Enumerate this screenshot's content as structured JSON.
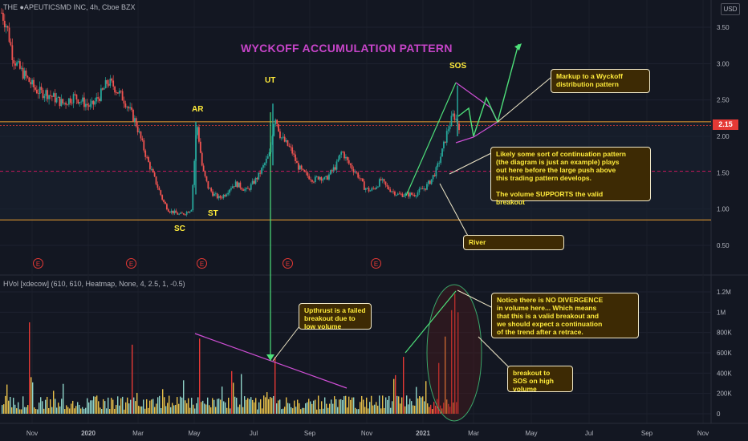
{
  "header": {
    "symbol_line": "THE ●APEUTICSMD INC, 4h, Cboe BZX",
    "currency": "USD",
    "last_price": "2.15",
    "indicator_line": "HVol [xdecow] (610, 610, Heatmap, None, 4, 2.5, 1, -0.5)"
  },
  "title": "WYCKOFF ACCUMULATION PATTERN",
  "labels": {
    "sc": "SC",
    "ar": "AR",
    "st": "ST",
    "ut": "UT",
    "sos": "SOS"
  },
  "earnings_badge": "E",
  "notes": {
    "markup": "Markup to a Wyckoff\ndistribution pattern",
    "continuation": "Likely some sort of continuation pattern\n(the diagram is just an example) plays\nout here before the large push above\nthis trading pattern develops.\n\nThe volume SUPPORTS the valid\nbreakout",
    "river": "River",
    "upthrust": "Upthrust is a failed\nbreakout due to\nlow volume",
    "divergence": "Notice there is NO DIVERGENCE\nin volume here... Which means\nthat this is a valid breakout and\nwe should expect a continuation\nof the trend after a retrace.",
    "sos_volume": "breakout to\nSOS on high\nvolume"
  },
  "colors": {
    "background": "#131722",
    "candle_up": "#26a69a",
    "candle_down": "#ef5350",
    "range_line": "#f0a030",
    "mid_line": "#c2185b",
    "arrow": "#4ee07a",
    "diagonal": "#d04fd6",
    "note_bg": "#3d2a04",
    "note_text": "#ffeb3b"
  },
  "chart_data": [
    {
      "type": "line",
      "description_label": "price",
      "x_ticks": [
        "Nov",
        "2020",
        "Mar",
        "May",
        "Jul",
        "Sep",
        "Nov",
        "2021",
        "Mar",
        "May",
        "Jul",
        "Sep",
        "Nov"
      ],
      "y_ticks": [
        0.5,
        1.0,
        1.5,
        2.0,
        2.5,
        3.0,
        3.5
      ],
      "ylim": [
        0.3,
        3.85
      ],
      "last_price": 2.15,
      "range_high": 2.2,
      "range_mid": 1.52,
      "range_low": 0.85,
      "series": [
        {
          "values": [
            3.7,
            3.5,
            3.1,
            2.95,
            2.85,
            2.75,
            2.65,
            2.6,
            2.6,
            2.55,
            2.5,
            2.45,
            2.5,
            2.55,
            2.5,
            2.45,
            2.4,
            2.5,
            2.6,
            2.75,
            2.7,
            2.6,
            2.5,
            2.35,
            2.2,
            1.95,
            1.7,
            1.5,
            1.3,
            1.1,
            0.98,
            0.95,
            0.92,
            0.95,
            1.0,
            2.2,
            1.55,
            1.3,
            1.2,
            1.15,
            1.2,
            1.3,
            1.35,
            1.3,
            1.25,
            1.35,
            1.45,
            1.6,
            1.75,
            2.3,
            2.0,
            1.9,
            1.8,
            1.6,
            1.5,
            1.45,
            1.4,
            1.45,
            1.4,
            1.5,
            1.6,
            1.8,
            1.65,
            1.55,
            1.45,
            1.3,
            1.25,
            1.3,
            1.4,
            1.3,
            1.25,
            1.2,
            1.2,
            1.2,
            1.2,
            1.25,
            1.3,
            1.4,
            1.55,
            1.8,
            2.1,
            2.3,
            2.15
          ]
        }
      ]
    },
    {
      "type": "bar",
      "description_label": "volume",
      "y_ticks": [
        "0",
        "200K",
        "400K",
        "600K",
        "800K",
        "1M",
        "1.2M"
      ],
      "ylim": [
        0,
        1300000
      ]
    }
  ]
}
